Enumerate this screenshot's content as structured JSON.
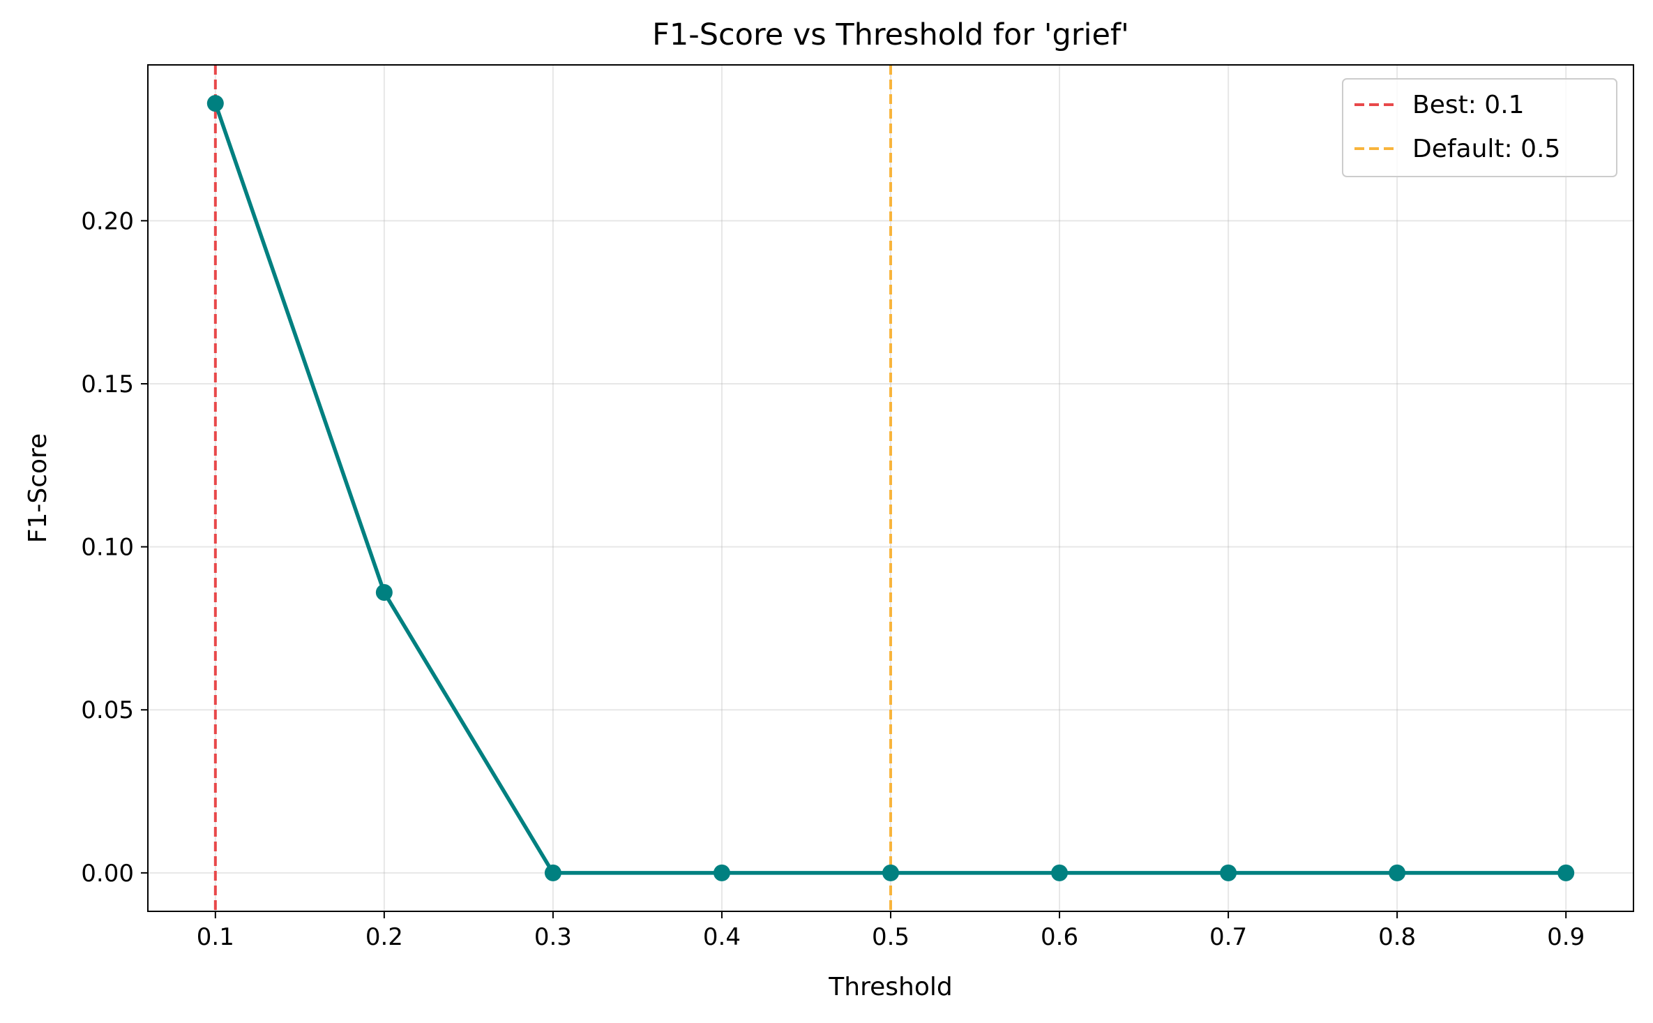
{
  "chart_data": {
    "type": "line",
    "title": "F1-Score vs Threshold for 'grief'",
    "xlabel": "Threshold",
    "ylabel": "F1-Score",
    "xlim": [
      0.06,
      0.94
    ],
    "ylim": [
      -0.0118,
      0.2478
    ],
    "grid": true,
    "legend_position": "top-right",
    "x_ticks": [
      0.1,
      0.2,
      0.3,
      0.4,
      0.5,
      0.6,
      0.7,
      0.8,
      0.9
    ],
    "x_tick_labels": [
      "0.1",
      "0.2",
      "0.3",
      "0.4",
      "0.5",
      "0.6",
      "0.7",
      "0.8",
      "0.9"
    ],
    "y_ticks": [
      0.0,
      0.05,
      0.1,
      0.15,
      0.2
    ],
    "y_tick_labels": [
      "0.00",
      "0.05",
      "0.10",
      "0.15",
      "0.20"
    ],
    "series": [
      {
        "color": "#008080",
        "x": [
          0.1,
          0.2,
          0.3,
          0.4,
          0.5,
          0.6,
          0.7,
          0.8,
          0.9
        ],
        "y": [
          0.236,
          0.086,
          0.0,
          0.0,
          0.0,
          0.0,
          0.0,
          0.0,
          0.0
        ]
      }
    ],
    "reference_lines": [
      {
        "label": "Best: 0.1",
        "x": 0.1,
        "color": "#e8484a",
        "style": "dashed"
      },
      {
        "label": "Default: 0.5",
        "x": 0.5,
        "color": "#f8b43c",
        "style": "dashed"
      }
    ]
  }
}
